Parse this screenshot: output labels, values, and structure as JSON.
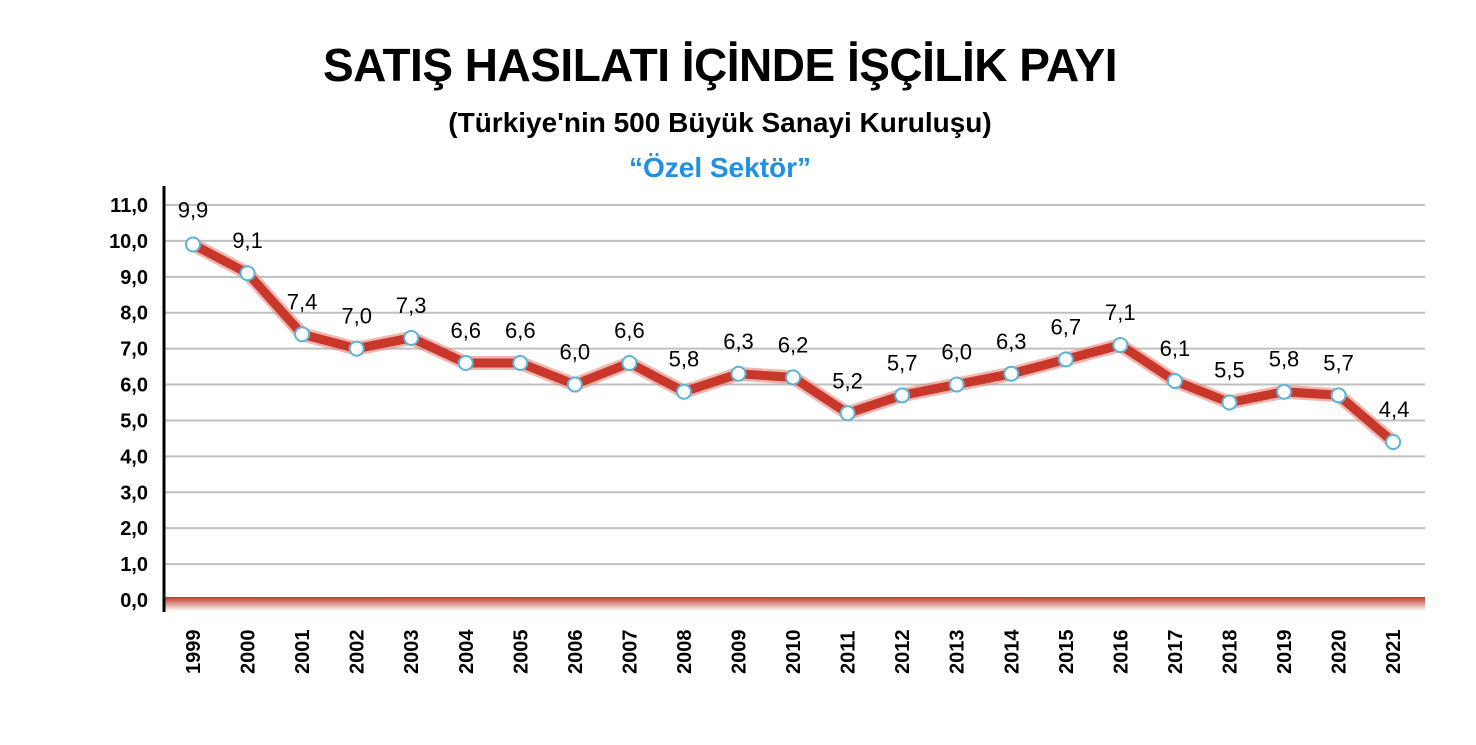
{
  "colors": {
    "line": "#c8372a",
    "line_shadow": "#e8867a",
    "marker_fill": "#ffffff",
    "marker_stroke": "#5ab4d8",
    "grid": "#c0c0c0",
    "axis": "#000000",
    "baseline": "#c0392b",
    "subtitle2": "#1e90e6"
  },
  "chart_data": {
    "type": "line",
    "title": "SATIŞ HASILATI İÇİNDE İŞÇİLİK PAYI",
    "subtitle": "(Türkiye'nin 500 Büyük Sanayi Kuruluşu)",
    "subtitle2": "“Özel Sektör”",
    "xlabel": "",
    "ylabel": "",
    "ylim": [
      0,
      11
    ],
    "grid": true,
    "yticks": [
      "0,0",
      "1,0",
      "2,0",
      "3,0",
      "4,0",
      "5,0",
      "6,0",
      "7,0",
      "8,0",
      "9,0",
      "10,0",
      "11,0"
    ],
    "categories": [
      "1999",
      "2000",
      "2001",
      "2002",
      "2003",
      "2004",
      "2005",
      "2006",
      "2007",
      "2008",
      "2009",
      "2010",
      "2011",
      "2012",
      "2013",
      "2014",
      "2015",
      "2016",
      "2017",
      "2018",
      "2019",
      "2020",
      "2021"
    ],
    "values": [
      9.9,
      9.1,
      7.4,
      7.0,
      7.3,
      6.6,
      6.6,
      6.0,
      6.6,
      5.8,
      6.3,
      6.2,
      5.2,
      5.7,
      6.0,
      6.3,
      6.7,
      7.1,
      6.1,
      5.5,
      5.8,
      5.7,
      4.4
    ],
    "value_labels": [
      "9,9",
      "9,1",
      "7,4",
      "7,0",
      "7,3",
      "6,6",
      "6,6",
      "6,0",
      "6,6",
      "5,8",
      "6,3",
      "6,2",
      "5,2",
      "5,7",
      "6,0",
      "6,3",
      "6,7",
      "7,1",
      "6,1",
      "5,5",
      "5,8",
      "5,7",
      "4,4"
    ]
  }
}
